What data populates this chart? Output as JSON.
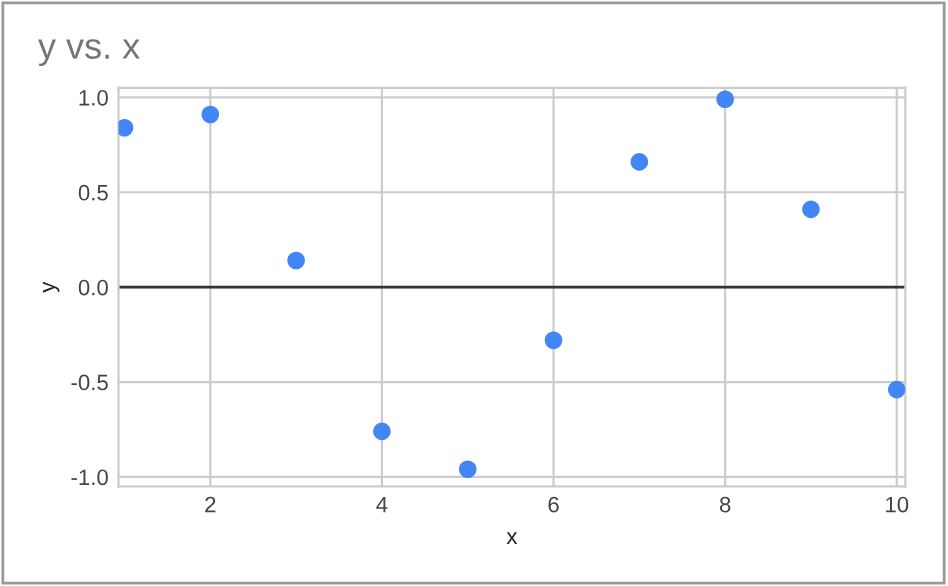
{
  "chart_data": {
    "type": "scatter",
    "title": "y vs. x",
    "xlabel": "x",
    "ylabel": "y",
    "x": [
      1,
      2,
      3,
      4,
      5,
      6,
      7,
      8,
      9,
      10
    ],
    "series": [
      {
        "color": "#4285f4",
        "values": [
          0.84,
          0.91,
          0.14,
          -0.76,
          -0.96,
          -0.28,
          0.66,
          0.99,
          0.41,
          -0.54
        ]
      }
    ],
    "xlim": [
      0.93,
      10.1
    ],
    "xticks": [
      2,
      4,
      6,
      8,
      10
    ],
    "ylim": [
      -1.05,
      1.05
    ],
    "yticks": [
      {
        "value": -1.0,
        "label": "-1.0"
      },
      {
        "value": -0.5,
        "label": "-0.5"
      },
      {
        "value": 0.0,
        "label": "0.0"
      },
      {
        "value": 0.5,
        "label": "0.5"
      },
      {
        "value": 1.0,
        "label": "1.0"
      }
    ],
    "ref_lines": [
      {
        "axis": "y",
        "value": 0,
        "color": "#333333"
      }
    ],
    "grid": true,
    "marker": "circle",
    "legend": false
  }
}
